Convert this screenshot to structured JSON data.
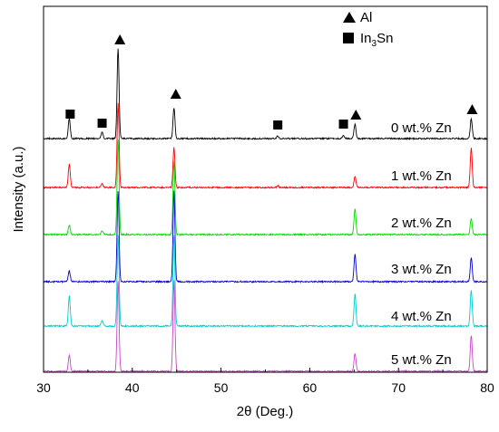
{
  "chart_data": {
    "type": "line",
    "xlabel": "2θ  (Deg.)",
    "ylabel": "Intensity (a.u.)",
    "xlim": [
      30,
      80
    ],
    "xticks": [
      30,
      40,
      50,
      60,
      70,
      80
    ],
    "grid": false,
    "legend": {
      "position": "top-right",
      "entries": [
        {
          "symbol": "triangle",
          "label": "Al"
        },
        {
          "symbol": "square",
          "label": "In",
          "sub": "3",
          "label_tail": "Sn"
        }
      ]
    },
    "series": [
      {
        "name": "0 wt.% Zn",
        "color": "#000000",
        "peaks": [
          [
            32.9,
            0.22
          ],
          [
            36.6,
            0.07
          ],
          [
            38.4,
            1.0
          ],
          [
            44.7,
            0.34
          ],
          [
            56.4,
            0.03
          ],
          [
            63.8,
            0.03
          ],
          [
            65.1,
            0.16
          ],
          [
            78.2,
            0.22
          ]
        ]
      },
      {
        "name": "1 wt.% Zn",
        "color": "#ff0000",
        "peaks": [
          [
            32.9,
            0.26
          ],
          [
            36.6,
            0.04
          ],
          [
            38.4,
            0.95
          ],
          [
            44.7,
            0.45
          ],
          [
            56.4,
            0.02
          ],
          [
            65.1,
            0.12
          ],
          [
            78.2,
            0.45
          ]
        ]
      },
      {
        "name": "2 wt.% Zn",
        "color": "#00dd00",
        "peaks": [
          [
            32.9,
            0.1
          ],
          [
            36.6,
            0.04
          ],
          [
            38.4,
            1.0
          ],
          [
            44.7,
            0.78
          ],
          [
            65.1,
            0.27
          ],
          [
            78.2,
            0.17
          ]
        ]
      },
      {
        "name": "3 wt.% Zn",
        "color": "#0000cc",
        "peaks": [
          [
            32.9,
            0.12
          ],
          [
            38.4,
            1.0
          ],
          [
            44.7,
            1.0
          ],
          [
            65.1,
            0.3
          ],
          [
            78.2,
            0.27
          ]
        ]
      },
      {
        "name": "4 wt.% Zn",
        "color": "#00cccc",
        "peaks": [
          [
            32.9,
            0.33
          ],
          [
            36.6,
            0.06
          ],
          [
            38.4,
            1.0
          ],
          [
            44.7,
            1.0
          ],
          [
            65.1,
            0.35
          ],
          [
            78.2,
            0.4
          ]
        ]
      },
      {
        "name": "5 wt.% Zn",
        "color": "#cc44cc",
        "peaks": [
          [
            32.9,
            0.18
          ],
          [
            38.4,
            1.0
          ],
          [
            44.7,
            1.0
          ],
          [
            65.1,
            0.2
          ],
          [
            78.2,
            0.4
          ]
        ]
      }
    ],
    "markers": [
      {
        "symbol": "square",
        "x": 32.9
      },
      {
        "symbol": "square",
        "x": 36.6
      },
      {
        "symbol": "triangle",
        "x": 38.4
      },
      {
        "symbol": "triangle",
        "x": 44.7
      },
      {
        "symbol": "square",
        "x": 56.4
      },
      {
        "symbol": "square",
        "x": 63.8
      },
      {
        "symbol": "triangle",
        "x": 65.1
      },
      {
        "symbol": "triangle",
        "x": 78.2
      }
    ]
  }
}
